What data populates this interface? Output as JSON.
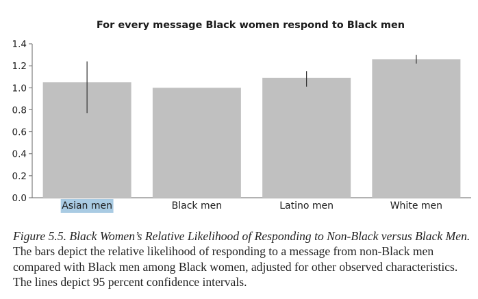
{
  "chart_data": {
    "type": "bar",
    "title": "For every message Black women respond to Black men",
    "categories": [
      "Asian men",
      "Black men",
      "Latino men",
      "White men"
    ],
    "values": [
      1.05,
      1.0,
      1.09,
      1.26
    ],
    "error_bars": [
      {
        "low": 0.77,
        "high": 1.24
      },
      null,
      {
        "low": 1.01,
        "high": 1.15
      },
      {
        "low": 1.22,
        "high": 1.3
      }
    ],
    "ylim": [
      0,
      1.4
    ],
    "yticks": [
      "1.4",
      "1.2",
      "1.0",
      "0.8",
      "0.6",
      "0.4",
      "0.2",
      "0.0"
    ],
    "xlabel": "",
    "ylabel": "",
    "grid": false,
    "highlighted_category": "Asian men",
    "colors": {
      "bar": "#c0c0c0",
      "error": "#333333",
      "axis": "#666666",
      "highlight": "#a9cbe3"
    }
  },
  "caption": {
    "figure_label": "Figure 5.5.  Black Women’s Relative Likelihood of Responding to Non-Black versus Black Men.",
    "text": " The bars depict the relative likelihood of responding to a message from non-Black men compared with Black men among Black women, adjusted for other observed characteristics. The lines depict 95 percent confidence intervals."
  }
}
